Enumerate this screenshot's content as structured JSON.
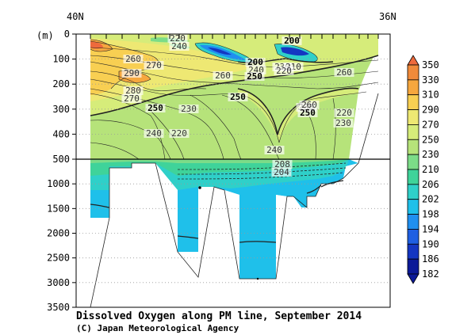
{
  "chart_data": {
    "type": "heatmap",
    "title": "Dissolved Oxygen along PM line, September 2014",
    "credit": "(C) Japan Meteorological Agency",
    "top_labels": {
      "left": "40N",
      "right": "36N"
    },
    "y_unit_label": "(m)",
    "y_axis": {
      "upper_ticks": [
        0,
        100,
        200,
        300,
        400,
        500
      ],
      "lower_ticks": [
        1000,
        1500,
        2000,
        2500,
        3000,
        3500
      ],
      "upper_range": [
        0,
        500
      ],
      "lower_range": [
        500,
        3500
      ]
    },
    "colorbar": {
      "levels": [
        350,
        330,
        310,
        290,
        270,
        250,
        230,
        210,
        206,
        202,
        198,
        194,
        190,
        186,
        182
      ],
      "colors": [
        "#ee6a3c",
        "#f08a3a",
        "#f6a73e",
        "#f8cf52",
        "#eee873",
        "#d6ec7a",
        "#b6e37a",
        "#7cdc88",
        "#3fd39a",
        "#2fd0c9",
        "#1fc0ea",
        "#1f8ff0",
        "#1f5fe2",
        "#1436c2",
        "#0c1a98"
      ]
    },
    "contour_labels": [
      {
        "text": "220",
        "bold": false
      },
      {
        "text": "240",
        "bold": false
      },
      {
        "text": "200",
        "bold": true
      },
      {
        "text": "260",
        "bold": false
      },
      {
        "text": "270",
        "bold": false
      },
      {
        "text": "200",
        "bold": true
      },
      {
        "text": "230",
        "bold": false
      },
      {
        "text": "210",
        "bold": false
      },
      {
        "text": "240",
        "bold": false
      },
      {
        "text": "220",
        "bold": false
      },
      {
        "text": "250",
        "bold": true
      },
      {
        "text": "290",
        "bold": false
      },
      {
        "text": "260",
        "bold": false
      },
      {
        "text": "260",
        "bold": false
      },
      {
        "text": "280",
        "bold": false
      },
      {
        "text": "270",
        "bold": false
      },
      {
        "text": "250",
        "bold": true
      },
      {
        "text": "230",
        "bold": false
      },
      {
        "text": "260",
        "bold": false
      },
      {
        "text": "250",
        "bold": true
      },
      {
        "text": "230",
        "bold": false
      },
      {
        "text": "220",
        "bold": false
      },
      {
        "text": "250",
        "bold": true
      },
      {
        "text": "230",
        "bold": false
      },
      {
        "text": "240",
        "bold": false
      },
      {
        "text": "220",
        "bold": false
      },
      {
        "text": "240",
        "bold": false
      },
      {
        "text": "208",
        "bold": false
      },
      {
        "text": "204",
        "bold": false
      }
    ]
  }
}
